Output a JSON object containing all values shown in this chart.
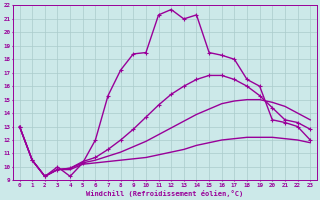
{
  "bg_color": "#cce9e9",
  "grid_color": "#aacccc",
  "line_color": "#990099",
  "xlabel": "Windchill (Refroidissement éolien,°C)",
  "xlabel_color": "#990099",
  "xmin": -0.5,
  "xmax": 23.5,
  "ymin": 9,
  "ymax": 22,
  "yticks": [
    9,
    10,
    11,
    12,
    13,
    14,
    15,
    16,
    17,
    18,
    19,
    20,
    21,
    22
  ],
  "xticks": [
    0,
    1,
    2,
    3,
    4,
    5,
    6,
    7,
    8,
    9,
    10,
    11,
    12,
    13,
    14,
    15,
    16,
    17,
    18,
    19,
    20,
    21,
    22,
    23
  ],
  "curves": [
    {
      "x": [
        0,
        1,
        2,
        3,
        4,
        5,
        6,
        7,
        8,
        9,
        10,
        11,
        12,
        13,
        14,
        15,
        16,
        17,
        18,
        19,
        20,
        21,
        22,
        23
      ],
      "y": [
        13,
        10.5,
        9.3,
        9.8,
        9.8,
        10.2,
        10.3,
        10.4,
        10.5,
        10.6,
        10.7,
        10.9,
        11.1,
        11.3,
        11.6,
        11.8,
        12.0,
        12.1,
        12.2,
        12.2,
        12.2,
        12.1,
        12.0,
        11.8
      ],
      "marker": false,
      "linewidth": 1.0
    },
    {
      "x": [
        0,
        1,
        2,
        3,
        4,
        5,
        6,
        7,
        8,
        9,
        10,
        11,
        12,
        13,
        14,
        15,
        16,
        17,
        18,
        19,
        20,
        21,
        22,
        23
      ],
      "y": [
        13,
        10.5,
        9.3,
        9.8,
        9.9,
        10.3,
        10.5,
        10.8,
        11.1,
        11.5,
        11.9,
        12.4,
        12.9,
        13.4,
        13.9,
        14.3,
        14.7,
        14.9,
        15.0,
        15.0,
        14.8,
        14.5,
        14.0,
        13.5
      ],
      "marker": false,
      "linewidth": 1.0
    },
    {
      "x": [
        0,
        1,
        2,
        3,
        4,
        5,
        6,
        7,
        8,
        9,
        10,
        11,
        12,
        13,
        14,
        15,
        16,
        17,
        18,
        19,
        20,
        21,
        22,
        23
      ],
      "y": [
        13,
        10.5,
        9.3,
        9.8,
        9.9,
        10.4,
        10.7,
        11.3,
        12.0,
        12.8,
        13.7,
        14.6,
        15.4,
        16.0,
        16.5,
        16.8,
        16.8,
        16.5,
        16.0,
        15.3,
        14.4,
        13.5,
        13.3,
        12.8
      ],
      "marker": true,
      "linewidth": 1.0
    },
    {
      "x": [
        0,
        1,
        2,
        3,
        4,
        5,
        6,
        7,
        8,
        9,
        10,
        11,
        12,
        13,
        14,
        15,
        16,
        17,
        18,
        19,
        20,
        21,
        22,
        23
      ],
      "y": [
        13,
        10.5,
        9.3,
        10.0,
        9.3,
        10.3,
        12.0,
        15.3,
        17.2,
        18.4,
        18.5,
        21.3,
        21.7,
        21.0,
        21.3,
        18.5,
        18.3,
        18.0,
        16.5,
        16.0,
        13.5,
        13.3,
        13.0,
        12.0
      ],
      "marker": true,
      "linewidth": 1.0
    }
  ]
}
